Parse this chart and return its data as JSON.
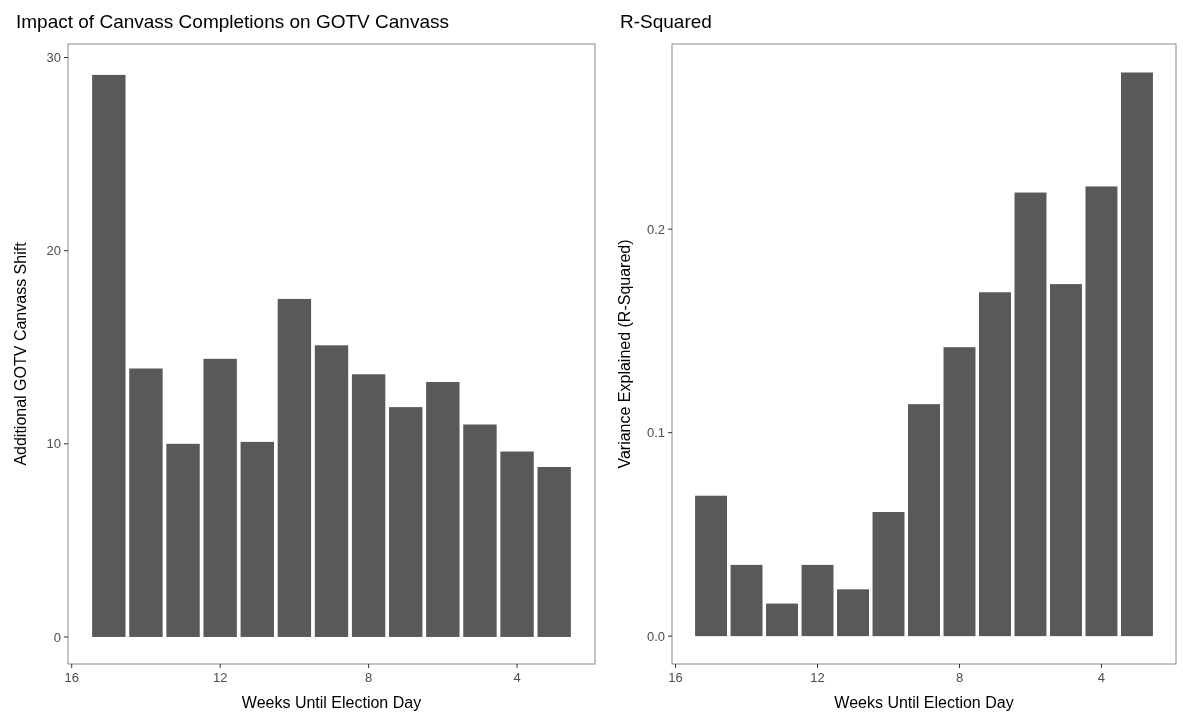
{
  "chart_data": [
    {
      "type": "bar",
      "title": "Impact of Canvass Completions on GOTV Canvass",
      "xlabel": "Weeks Until Election Day",
      "ylabel": "Additional GOTV Canvass Shift",
      "x": [
        15,
        14,
        13,
        12,
        11,
        10,
        9,
        8,
        7,
        6,
        5,
        4,
        3
      ],
      "values": [
        29.1,
        13.9,
        10.0,
        14.4,
        10.1,
        17.5,
        15.1,
        13.6,
        11.9,
        13.2,
        11.0,
        9.6,
        8.8
      ],
      "color": "#595959",
      "xlim": [
        16.1,
        1.9
      ],
      "xticks": [
        16,
        12,
        8,
        4
      ],
      "ylim": [
        -1.4,
        30.7
      ],
      "yticks": [
        0,
        10,
        20,
        30
      ],
      "grid": false
    },
    {
      "type": "bar",
      "title": "R-Squared",
      "xlabel": "Weeks Until Election Day",
      "ylabel": "Variance Explained (R-Squared)",
      "x": [
        15,
        14,
        13,
        12,
        11,
        10,
        9,
        8,
        7,
        6,
        5,
        4,
        3
      ],
      "values": [
        0.069,
        0.035,
        0.016,
        0.035,
        0.023,
        0.061,
        0.114,
        0.142,
        0.169,
        0.218,
        0.173,
        0.221,
        0.277
      ],
      "color": "#595959",
      "xlim": [
        16.1,
        1.9
      ],
      "xticks": [
        16,
        12,
        8,
        4
      ],
      "ylim": [
        -0.0137,
        0.291
      ],
      "yticks": [
        {
          "value": 0,
          "label": "0.0"
        },
        0.1,
        0.2
      ],
      "grid": false
    }
  ]
}
